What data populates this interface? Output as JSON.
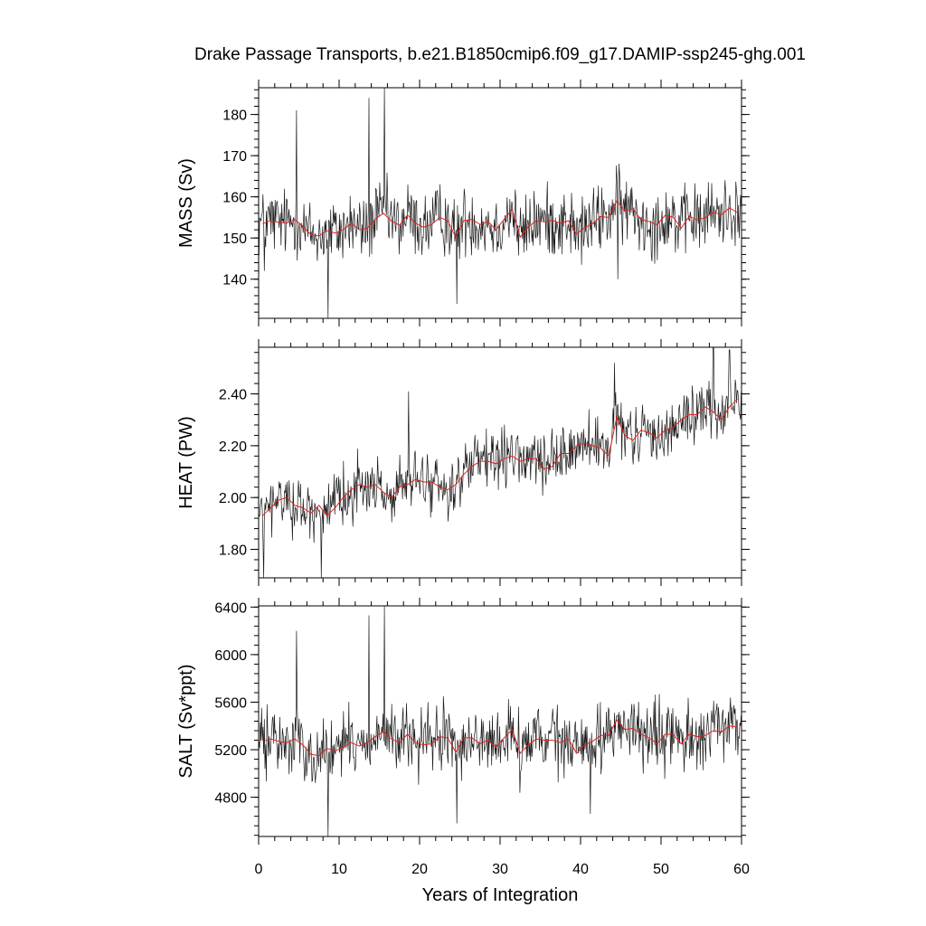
{
  "title": "Drake Passage Transports, b.e21.B1850cmip6.f09_g17.DAMIP-ssp245-ghg.001",
  "xlabel": "Years of Integration",
  "chart_data": [
    {
      "type": "line",
      "ylabel": "MASS (Sv)",
      "xlim": [
        0,
        60
      ],
      "ylim": [
        130.5,
        186.5
      ],
      "y_ticks": [
        140,
        150,
        160,
        170,
        180
      ],
      "y_tick_labels": [
        "140",
        "150",
        "160",
        "170",
        "180"
      ],
      "x_ticks": [
        0,
        10,
        20,
        30,
        40,
        50,
        60
      ],
      "monthly": {
        "mean": 153.5,
        "amp": 10,
        "trend": 2.5,
        "spikes": [
          [
            0.7,
            142
          ],
          [
            4.7,
            181
          ],
          [
            8.6,
            130.5
          ],
          [
            13.7,
            184
          ],
          [
            15.6,
            186.5
          ],
          [
            24.6,
            134
          ],
          [
            44.6,
            140
          ]
        ]
      },
      "annual": {
        "x": [
          0.5,
          1.5,
          2.5,
          3.5,
          4.5,
          5.5,
          6.5,
          7.5,
          8.5,
          9.5,
          10.5,
          11.5,
          12.5,
          13.5,
          14.5,
          15.5,
          16.5,
          17.5,
          18.5,
          19.5,
          20.5,
          21.5,
          22.5,
          23.5,
          24.5,
          25.5,
          26.5,
          27.5,
          28.5,
          29.5,
          30.5,
          31.5,
          32.5,
          33.5,
          34.5,
          35.5,
          36.5,
          37.5,
          38.5,
          39.5,
          40.5,
          41.5,
          42.5,
          43.5,
          44.5,
          45.5,
          46.5,
          47.5,
          48.5,
          49.5,
          50.5,
          51.5,
          52.5,
          53.5,
          54.5,
          55.5,
          56.5,
          57.5,
          58.5,
          59.5
        ],
        "y": [
          153.5,
          154.2,
          153.8,
          153.6,
          154.5,
          152.8,
          150.8,
          150.5,
          151.8,
          151.2,
          152.0,
          153.6,
          152.0,
          152.4,
          154.6,
          156.0,
          154.1,
          153.1,
          155.6,
          153.6,
          152.6,
          153.3,
          155.0,
          154.2,
          150.2,
          154.2,
          154.5,
          153.3,
          154.0,
          152.0,
          154.6,
          156.9,
          150.2,
          152.7,
          154.2,
          153.9,
          154.3,
          153.6,
          154.2,
          151.0,
          152.5,
          153.5,
          155.2,
          155.0,
          159.0,
          156.6,
          157.1,
          154.5,
          154.0,
          153.2,
          155.5,
          155.1,
          152.4,
          155.3,
          154.4,
          154.9,
          156.3,
          155.7,
          157.3,
          156.2
        ]
      }
    },
    {
      "type": "line",
      "ylabel": "HEAT (PW)",
      "xlim": [
        0,
        60
      ],
      "ylim": [
        1.69,
        2.58
      ],
      "y_ticks": [
        1.8,
        2.0,
        2.2,
        2.4
      ],
      "y_tick_labels": [
        "1.80",
        "2.00",
        "2.20",
        "2.40"
      ],
      "x_ticks": [
        0,
        10,
        20,
        30,
        40,
        50,
        60
      ],
      "monthly": {
        "mean": 0,
        "amp": 0.13,
        "trend": 0.03,
        "spikes": [
          [
            0.6,
            1.69
          ],
          [
            7.8,
            1.69
          ],
          [
            18.6,
            2.41
          ],
          [
            44.2,
            2.52
          ],
          [
            56.5,
            2.58
          ],
          [
            58.5,
            2.57
          ]
        ]
      },
      "annual": {
        "x": [
          0.5,
          1.5,
          2.5,
          3.5,
          4.5,
          5.5,
          6.5,
          7.5,
          8.5,
          9.5,
          10.5,
          11.5,
          12.5,
          13.5,
          14.5,
          15.5,
          16.5,
          17.5,
          18.5,
          19.5,
          20.5,
          21.5,
          22.5,
          23.5,
          24.5,
          25.5,
          26.5,
          27.5,
          28.5,
          29.5,
          30.5,
          31.5,
          32.5,
          33.5,
          34.5,
          35.5,
          36.5,
          37.5,
          38.5,
          39.5,
          40.5,
          41.5,
          42.5,
          43.5,
          44.5,
          45.5,
          46.5,
          47.5,
          48.5,
          49.5,
          50.5,
          51.5,
          52.5,
          53.5,
          54.5,
          55.5,
          56.5,
          57.5,
          58.5,
          59.5
        ],
        "y": [
          1.93,
          1.96,
          1.99,
          2.0,
          1.97,
          1.96,
          1.94,
          1.97,
          1.93,
          1.96,
          2.0,
          2.03,
          2.05,
          2.04,
          2.05,
          2.02,
          2.0,
          2.04,
          2.05,
          2.07,
          2.06,
          2.06,
          2.04,
          2.03,
          2.05,
          2.09,
          2.12,
          2.14,
          2.14,
          2.13,
          2.15,
          2.16,
          2.14,
          2.15,
          2.15,
          2.11,
          2.12,
          2.17,
          2.17,
          2.2,
          2.21,
          2.2,
          2.19,
          2.16,
          2.31,
          2.24,
          2.22,
          2.26,
          2.25,
          2.23,
          2.26,
          2.27,
          2.3,
          2.32,
          2.32,
          2.35,
          2.33,
          2.3,
          2.35,
          2.38
        ]
      }
    },
    {
      "type": "line",
      "ylabel": "SALT (Sv*ppt)",
      "xlim": [
        0,
        60
      ],
      "ylim": [
        4470,
        6410
      ],
      "y_ticks": [
        4800,
        5200,
        5600,
        6000,
        6400
      ],
      "y_tick_labels": [
        "4800",
        "5200",
        "5600",
        "6000",
        "6400"
      ],
      "x_ticks": [
        0,
        10,
        20,
        30,
        40,
        50,
        60
      ],
      "monthly": {
        "mean": 5290,
        "amp": 330,
        "trend": 80,
        "spikes": [
          [
            4.7,
            6200
          ],
          [
            8.6,
            4470
          ],
          [
            13.7,
            6330
          ],
          [
            15.6,
            6410
          ],
          [
            24.6,
            4580
          ],
          [
            41.2,
            4660
          ]
        ]
      },
      "annual": {
        "x": [
          0.5,
          1.5,
          2.5,
          3.5,
          4.5,
          5.5,
          6.5,
          7.5,
          8.5,
          9.5,
          10.5,
          11.5,
          12.5,
          13.5,
          14.5,
          15.5,
          16.5,
          17.5,
          18.5,
          19.5,
          20.5,
          21.5,
          22.5,
          23.5,
          24.5,
          25.5,
          26.5,
          27.5,
          28.5,
          29.5,
          30.5,
          31.5,
          32.5,
          33.5,
          34.5,
          35.5,
          36.5,
          37.5,
          38.5,
          39.5,
          40.5,
          41.5,
          42.5,
          43.5,
          44.5,
          45.5,
          46.5,
          47.5,
          48.5,
          49.5,
          50.5,
          51.5,
          52.5,
          53.5,
          54.5,
          55.5,
          56.5,
          57.5,
          58.5,
          59.5
        ],
        "y": [
          5270,
          5290,
          5270,
          5260,
          5290,
          5240,
          5160,
          5150,
          5210,
          5190,
          5220,
          5260,
          5230,
          5260,
          5310,
          5350,
          5290,
          5260,
          5330,
          5260,
          5240,
          5250,
          5310,
          5300,
          5180,
          5300,
          5300,
          5250,
          5280,
          5220,
          5300,
          5370,
          5170,
          5240,
          5290,
          5280,
          5280,
          5260,
          5290,
          5170,
          5240,
          5270,
          5320,
          5320,
          5450,
          5370,
          5380,
          5330,
          5300,
          5250,
          5330,
          5330,
          5250,
          5330,
          5310,
          5320,
          5360,
          5350,
          5400,
          5390
        ]
      }
    }
  ]
}
